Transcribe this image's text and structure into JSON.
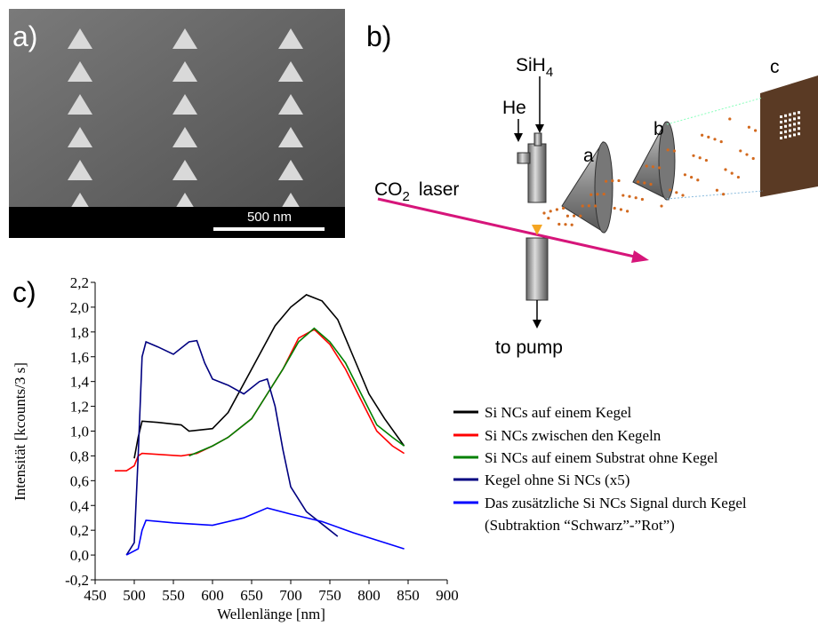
{
  "panel_a": {
    "label": "a)",
    "scale_bar": "500 nm"
  },
  "panel_b": {
    "label": "b)",
    "silane": {
      "base": "SiH",
      "sub": "4"
    },
    "helium": "He",
    "laser": {
      "base": "CO",
      "sub": "2",
      "word": "laser"
    },
    "part_a": "a",
    "part_b": "b",
    "part_c": "c",
    "pump": "to pump"
  },
  "panel_c": {
    "label": "c)"
  },
  "chart_data": {
    "type": "line",
    "xlabel": "Wellenlänge [nm]",
    "ylabel": "Intensität [kcounts/3 s]",
    "xlim": [
      450,
      900
    ],
    "xticks": [
      450,
      500,
      550,
      600,
      650,
      700,
      750,
      800,
      850,
      900
    ],
    "ylim": [
      -0.2,
      2.2
    ],
    "yticks": [
      {
        "value": -0.2,
        "label": "-0,2"
      },
      {
        "value": 0,
        "label": "0,0"
      },
      {
        "value": 0.2,
        "label": "0,2"
      },
      {
        "value": 0.4,
        "label": "0,4"
      },
      {
        "value": 0.6,
        "label": "0,6"
      },
      {
        "value": 0.8,
        "label": "0,8"
      },
      {
        "value": 1.0,
        "label": "1,0"
      },
      {
        "value": 1.2,
        "label": "1,2"
      },
      {
        "value": 1.4,
        "label": "1,4"
      },
      {
        "value": 1.6,
        "label": "1,6"
      },
      {
        "value": 1.8,
        "label": "1,8"
      },
      {
        "value": 2.0,
        "label": "2,0"
      },
      {
        "value": 2.2,
        "label": "2,2"
      }
    ],
    "legend_extra": "(Subtraktion “Schwarz”-”Rot”)",
    "series": [
      {
        "name": "Si NCs auf einem Kegel",
        "color": "#000000",
        "x": [
          500,
          505,
          510,
          530,
          560,
          570,
          600,
          620,
          650,
          680,
          700,
          720,
          740,
          760,
          780,
          800,
          820,
          845
        ],
        "values": [
          0.78,
          0.95,
          1.08,
          1.07,
          1.05,
          1.0,
          1.02,
          1.15,
          1.5,
          1.85,
          2.0,
          2.1,
          2.05,
          1.9,
          1.6,
          1.3,
          1.1,
          0.88
        ]
      },
      {
        "name": "Si NCs zwischen den Kegeln",
        "color": "#ff0000",
        "x": [
          475,
          490,
          500,
          505,
          510,
          560,
          580,
          600,
          620,
          650,
          670,
          690,
          710,
          730,
          750,
          770,
          790,
          810,
          830,
          845
        ],
        "values": [
          0.68,
          0.68,
          0.72,
          0.8,
          0.82,
          0.8,
          0.82,
          0.88,
          0.95,
          1.1,
          1.3,
          1.5,
          1.75,
          1.82,
          1.7,
          1.5,
          1.25,
          1.0,
          0.88,
          0.82
        ]
      },
      {
        "name": "Si NCs auf einem Substrat ohne Kegel",
        "color": "#008000",
        "x": [
          570,
          600,
          620,
          650,
          670,
          690,
          710,
          730,
          750,
          770,
          790,
          810,
          830,
          845
        ],
        "values": [
          0.8,
          0.88,
          0.95,
          1.1,
          1.3,
          1.5,
          1.72,
          1.83,
          1.72,
          1.55,
          1.3,
          1.05,
          0.95,
          0.88
        ]
      },
      {
        "name": "Kegel ohne Si NCs (x5)",
        "color": "#000080",
        "x": [
          490,
          500,
          505,
          510,
          515,
          530,
          550,
          570,
          580,
          590,
          600,
          620,
          640,
          660,
          670,
          680,
          690,
          700,
          720,
          740,
          760
        ],
        "values": [
          0.0,
          0.1,
          0.8,
          1.6,
          1.72,
          1.68,
          1.62,
          1.72,
          1.73,
          1.55,
          1.42,
          1.37,
          1.3,
          1.4,
          1.42,
          1.2,
          0.85,
          0.55,
          0.35,
          0.25,
          0.15
        ]
      },
      {
        "name": "Das zusätzliche Si NCs Signal durch Kegel",
        "color": "#0000ff",
        "x": [
          490,
          505,
          510,
          515,
          550,
          600,
          640,
          670,
          700,
          740,
          780,
          820,
          845
        ],
        "values": [
          0.0,
          0.05,
          0.2,
          0.28,
          0.26,
          0.24,
          0.3,
          0.38,
          0.33,
          0.27,
          0.18,
          0.1,
          0.05
        ]
      }
    ]
  }
}
